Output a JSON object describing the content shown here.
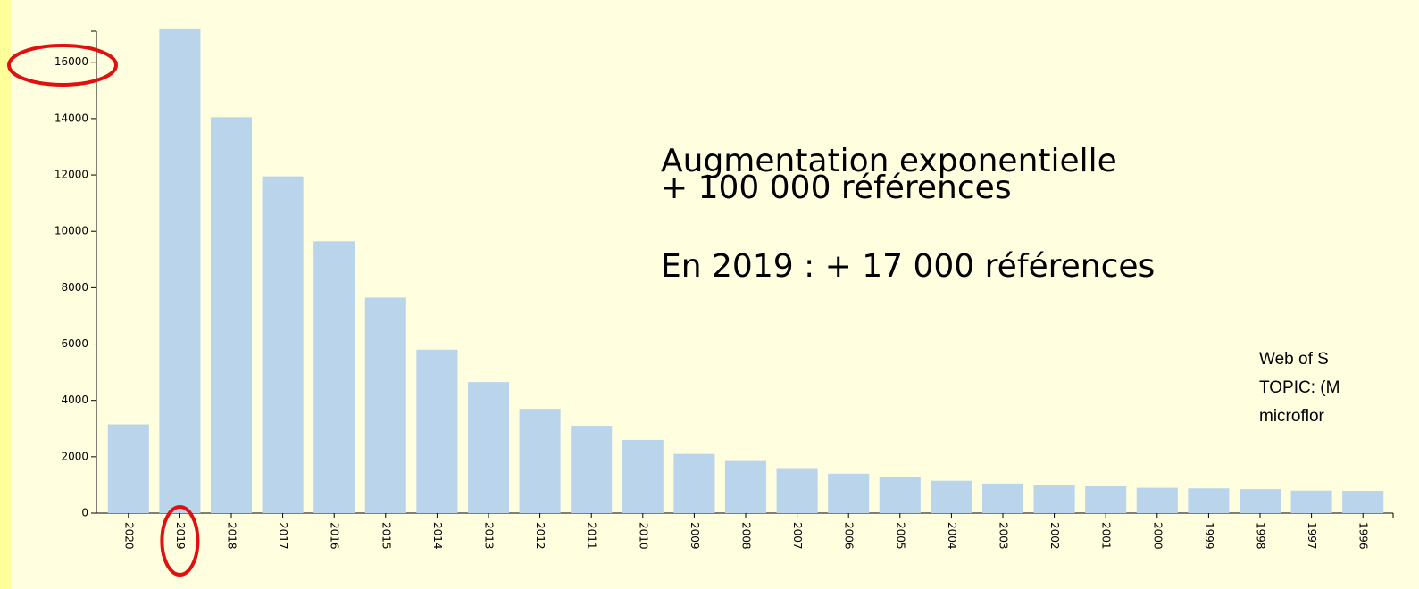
{
  "chart_data": {
    "type": "bar",
    "categories": [
      "2020",
      "2019",
      "2018",
      "2017",
      "2016",
      "2015",
      "2014",
      "2013",
      "2012",
      "2011",
      "2010",
      "2009",
      "2008",
      "2007",
      "2006",
      "2005",
      "2004",
      "2003",
      "2002",
      "2001",
      "2000",
      "1999",
      "1998",
      "1997",
      "1996"
    ],
    "values": [
      3150,
      17200,
      14050,
      11950,
      9650,
      7650,
      5800,
      4650,
      3700,
      3100,
      2600,
      2100,
      1850,
      1600,
      1400,
      1300,
      1150,
      1050,
      1000,
      950,
      900,
      880,
      850,
      800,
      790
    ],
    "color": "#bad4ec",
    "ylim": [
      0,
      17100
    ],
    "yticks": [
      0,
      2000,
      4000,
      6000,
      8000,
      10000,
      12000,
      14000,
      16000
    ],
    "annotations": [
      "Augmentation exponentielle",
      "+ 100 000 références",
      "En 2019 : + 17 000 références"
    ],
    "source_note": [
      "Web of S",
      "TOPIC: (M",
      "microflor"
    ]
  }
}
